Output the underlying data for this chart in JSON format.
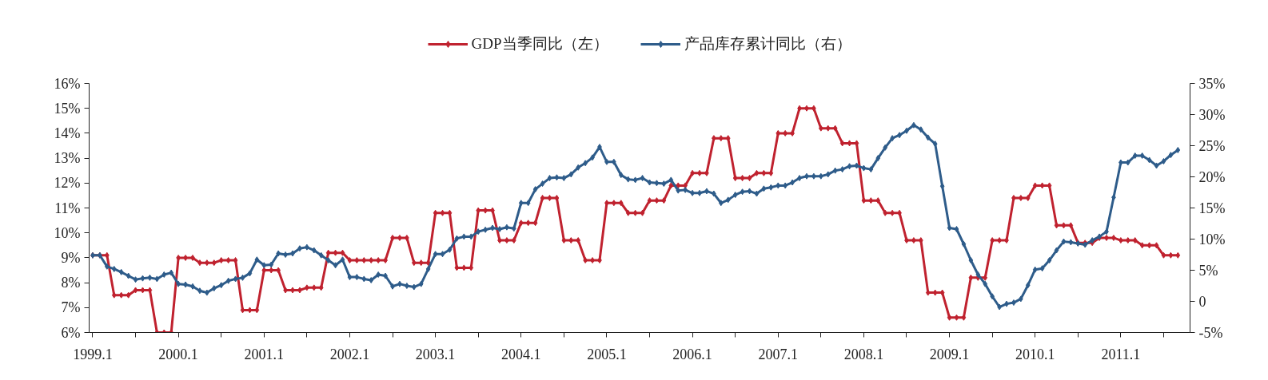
{
  "chart_data": {
    "type": "line",
    "legend": "top",
    "marker": "diamond",
    "line_style": "solid",
    "grid": false,
    "categories": [
      "1999.1",
      null,
      null,
      null,
      null,
      null,
      null,
      null,
      null,
      null,
      null,
      null,
      "2000.1",
      null,
      null,
      null,
      null,
      null,
      null,
      null,
      null,
      null,
      null,
      null,
      "2001.1",
      null,
      null,
      null,
      null,
      null,
      null,
      null,
      null,
      null,
      null,
      null,
      "2002.1",
      null,
      null,
      null,
      null,
      null,
      null,
      null,
      null,
      null,
      null,
      null,
      "2003.1",
      null,
      null,
      null,
      null,
      null,
      null,
      null,
      null,
      null,
      null,
      null,
      "2004.1",
      null,
      null,
      null,
      null,
      null,
      null,
      null,
      null,
      null,
      null,
      null,
      "2005.1",
      null,
      null,
      null,
      null,
      null,
      null,
      null,
      null,
      null,
      null,
      null,
      "2006.1",
      null,
      null,
      null,
      null,
      null,
      null,
      null,
      null,
      null,
      null,
      null,
      "2007.1",
      null,
      null,
      null,
      null,
      null,
      null,
      null,
      null,
      null,
      null,
      null,
      "2008.1",
      null,
      null,
      null,
      null,
      null,
      null,
      null,
      null,
      null,
      null,
      null,
      "2009.1",
      null,
      null,
      null,
      null,
      null,
      null,
      null,
      null,
      null,
      null,
      null,
      "2010.1",
      null,
      null,
      null,
      null,
      null,
      null,
      null,
      null,
      null,
      null,
      null,
      "2011.1",
      null,
      null,
      null,
      null,
      null,
      null,
      null,
      null
    ],
    "ylim": [
      6,
      16
    ],
    "yticks": [
      {
        "value": 6,
        "label": "6%"
      },
      {
        "value": 7,
        "label": "7%"
      },
      {
        "value": 8,
        "label": "8%"
      },
      {
        "value": 9,
        "label": "9%"
      },
      {
        "value": 10,
        "label": "10%"
      },
      {
        "value": 11,
        "label": "11%"
      },
      {
        "value": 12,
        "label": "12%"
      },
      {
        "value": 13,
        "label": "13%"
      },
      {
        "value": 14,
        "label": "14%"
      },
      {
        "value": 15,
        "label": "15%"
      },
      {
        "value": 16,
        "label": "16%"
      }
    ],
    "y2lim": [
      -5,
      35
    ],
    "y2ticks": [
      {
        "value": -5,
        "label": "-5%"
      },
      0,
      {
        "value": 5,
        "label": "5%"
      },
      {
        "value": 10,
        "label": "10%"
      },
      {
        "value": 15,
        "label": "15%"
      },
      {
        "value": 20,
        "label": "20%"
      },
      {
        "value": 25,
        "label": "25%"
      },
      {
        "value": 30,
        "label": "30%"
      },
      {
        "value": 35,
        "label": "35%"
      }
    ],
    "series": [
      {
        "name": "GDP当季同比（左）",
        "color": "#c0222f",
        "values": [
          9.1,
          9.1,
          9.1,
          7.5,
          7.5,
          7.5,
          7.7,
          7.7,
          7.7,
          6.0,
          6.0,
          6.0,
          9.0,
          9.0,
          9.0,
          8.8,
          8.8,
          8.8,
          8.9,
          8.9,
          8.9,
          6.9,
          6.9,
          6.9,
          8.5,
          8.5,
          8.5,
          7.7,
          7.7,
          7.7,
          7.8,
          7.8,
          7.8,
          9.2,
          9.2,
          9.2,
          8.9,
          8.9,
          8.9,
          8.9,
          8.9,
          8.9,
          9.8,
          9.8,
          9.8,
          8.8,
          8.8,
          8.8,
          10.8,
          10.8,
          10.8,
          8.6,
          8.6,
          8.6,
          10.9,
          10.9,
          10.9,
          9.7,
          9.7,
          9.7,
          10.4,
          10.4,
          10.4,
          11.4,
          11.4,
          11.4,
          9.7,
          9.7,
          9.7,
          8.9,
          8.9,
          8.9,
          11.2,
          11.2,
          11.2,
          10.8,
          10.8,
          10.8,
          11.3,
          11.3,
          11.3,
          11.9,
          11.9,
          11.9,
          12.4,
          12.4,
          12.4,
          13.8,
          13.8,
          13.8,
          12.2,
          12.2,
          12.2,
          12.4,
          12.4,
          12.4,
          14.0,
          14.0,
          14.0,
          15.0,
          15.0,
          15.0,
          14.2,
          14.2,
          14.2,
          13.6,
          13.6,
          13.6,
          11.3,
          11.3,
          11.3,
          10.8,
          10.8,
          10.8,
          9.7,
          9.7,
          9.7,
          7.6,
          7.6,
          7.6,
          6.6,
          6.6,
          6.6,
          8.2,
          8.2,
          8.2,
          9.7,
          9.7,
          9.7,
          11.4,
          11.4,
          11.4,
          11.9,
          11.9,
          11.9,
          10.3,
          10.3,
          10.3,
          9.6,
          9.6,
          9.6,
          9.8,
          9.8,
          9.8,
          9.7,
          9.7,
          9.7,
          9.5,
          9.5,
          9.5,
          9.1,
          9.1,
          9.1
        ]
      },
      {
        "name": "产品库存累计同比（右）",
        "color": "#2e5c8a",
        "axis": "y2",
        "values": [
          7.4,
          7.4,
          5.6,
          5.2,
          4.7,
          4.1,
          3.5,
          3.7,
          3.8,
          3.6,
          4.3,
          4.6,
          2.8,
          2.7,
          2.4,
          1.7,
          1.4,
          2.1,
          2.6,
          3.3,
          3.6,
          3.8,
          4.5,
          6.7,
          5.8,
          5.9,
          7.7,
          7.5,
          7.7,
          8.5,
          8.7,
          8.2,
          7.4,
          6.6,
          5.8,
          6.7,
          3.9,
          3.9,
          3.6,
          3.4,
          4.3,
          4.1,
          2.4,
          2.8,
          2.5,
          2.3,
          2.8,
          5.2,
          7.6,
          7.6,
          8.3,
          10.1,
          10.4,
          10.4,
          11.2,
          11.5,
          11.8,
          11.6,
          11.9,
          11.7,
          15.8,
          15.8,
          18.0,
          18.9,
          19.8,
          19.9,
          19.8,
          20.4,
          21.5,
          22.2,
          23.1,
          24.8,
          22.4,
          22.4,
          20.3,
          19.6,
          19.5,
          19.8,
          19.1,
          19.0,
          18.9,
          19.5,
          17.8,
          17.9,
          17.4,
          17.4,
          17.7,
          17.3,
          15.8,
          16.3,
          17.1,
          17.6,
          17.7,
          17.3,
          18.1,
          18.3,
          18.6,
          18.6,
          19.1,
          19.8,
          20.1,
          20.1,
          20.1,
          20.4,
          21.0,
          21.2,
          21.7,
          21.8,
          21.4,
          21.2,
          23.0,
          24.7,
          26.2,
          26.7,
          27.4,
          28.3,
          27.6,
          26.3,
          25.3,
          18.5,
          11.8,
          11.6,
          9.2,
          6.6,
          4.3,
          2.8,
          0.8,
          -0.9,
          -0.4,
          -0.2,
          0.4,
          2.6,
          5.1,
          5.3,
          6.6,
          8.2,
          9.6,
          9.5,
          9.3,
          9.1,
          9.8,
          10.4,
          11.2,
          16.7,
          22.3,
          22.3,
          23.4,
          23.4,
          22.7,
          21.8,
          22.5,
          23.5,
          24.3
        ]
      }
    ]
  }
}
